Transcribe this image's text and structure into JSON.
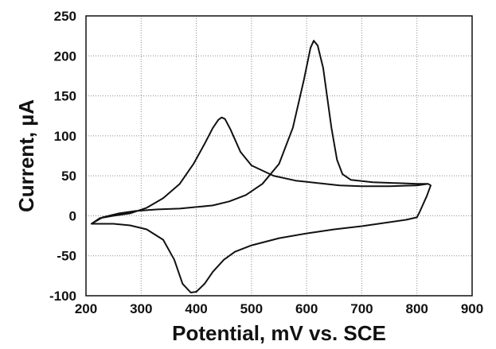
{
  "chart_data": {
    "type": "line",
    "xlabel": "Potential, mV vs. SCE",
    "ylabel": "Current, µA",
    "xlim": [
      200,
      900
    ],
    "ylim": [
      -100,
      250
    ],
    "x_ticks": [
      "200",
      "300",
      "400",
      "500",
      "600",
      "700",
      "800",
      "900"
    ],
    "y_ticks": [
      "250",
      "200",
      "150",
      "100",
      "50",
      "0",
      "-50",
      "-100"
    ],
    "grid": true,
    "series": [
      {
        "stroke": "#111111",
        "points": [
          [
            210,
            -10
          ],
          [
            230,
            -2
          ],
          [
            260,
            3
          ],
          [
            290,
            6
          ],
          [
            330,
            8
          ],
          [
            370,
            9
          ],
          [
            400,
            11
          ],
          [
            430,
            13
          ],
          [
            460,
            18
          ],
          [
            490,
            26
          ],
          [
            520,
            40
          ],
          [
            550,
            65
          ],
          [
            575,
            110
          ],
          [
            595,
            170
          ],
          [
            607,
            210
          ],
          [
            613,
            219
          ],
          [
            620,
            213
          ],
          [
            630,
            185
          ],
          [
            645,
            110
          ],
          [
            655,
            70
          ],
          [
            665,
            52
          ],
          [
            680,
            45
          ],
          [
            720,
            42
          ],
          [
            760,
            41
          ],
          [
            800,
            40
          ],
          [
            820,
            40
          ],
          [
            825,
            38
          ],
          [
            818,
            25
          ],
          [
            805,
            5
          ],
          [
            800,
            -2
          ],
          [
            780,
            -5
          ],
          [
            740,
            -9
          ],
          [
            700,
            -13
          ],
          [
            650,
            -17
          ],
          [
            600,
            -22
          ],
          [
            550,
            -28
          ],
          [
            500,
            -37
          ],
          [
            470,
            -45
          ],
          [
            450,
            -55
          ],
          [
            430,
            -70
          ],
          [
            415,
            -85
          ],
          [
            400,
            -95
          ],
          [
            390,
            -96
          ],
          [
            375,
            -85
          ],
          [
            360,
            -55
          ],
          [
            340,
            -30
          ],
          [
            310,
            -17
          ],
          [
            280,
            -12
          ],
          [
            250,
            -10
          ],
          [
            220,
            -10
          ],
          [
            210,
            -10
          ],
          [
            225,
            -3
          ],
          [
            250,
            0
          ],
          [
            280,
            3
          ],
          [
            310,
            10
          ],
          [
            340,
            22
          ],
          [
            370,
            40
          ],
          [
            395,
            65
          ],
          [
            415,
            90
          ],
          [
            430,
            110
          ],
          [
            440,
            120
          ],
          [
            446,
            123
          ],
          [
            452,
            121
          ],
          [
            462,
            108
          ],
          [
            480,
            80
          ],
          [
            500,
            63
          ],
          [
            540,
            50
          ],
          [
            580,
            44
          ],
          [
            620,
            41
          ],
          [
            660,
            38
          ],
          [
            700,
            37
          ],
          [
            750,
            37
          ],
          [
            800,
            38
          ],
          [
            820,
            40
          ]
        ]
      }
    ]
  }
}
